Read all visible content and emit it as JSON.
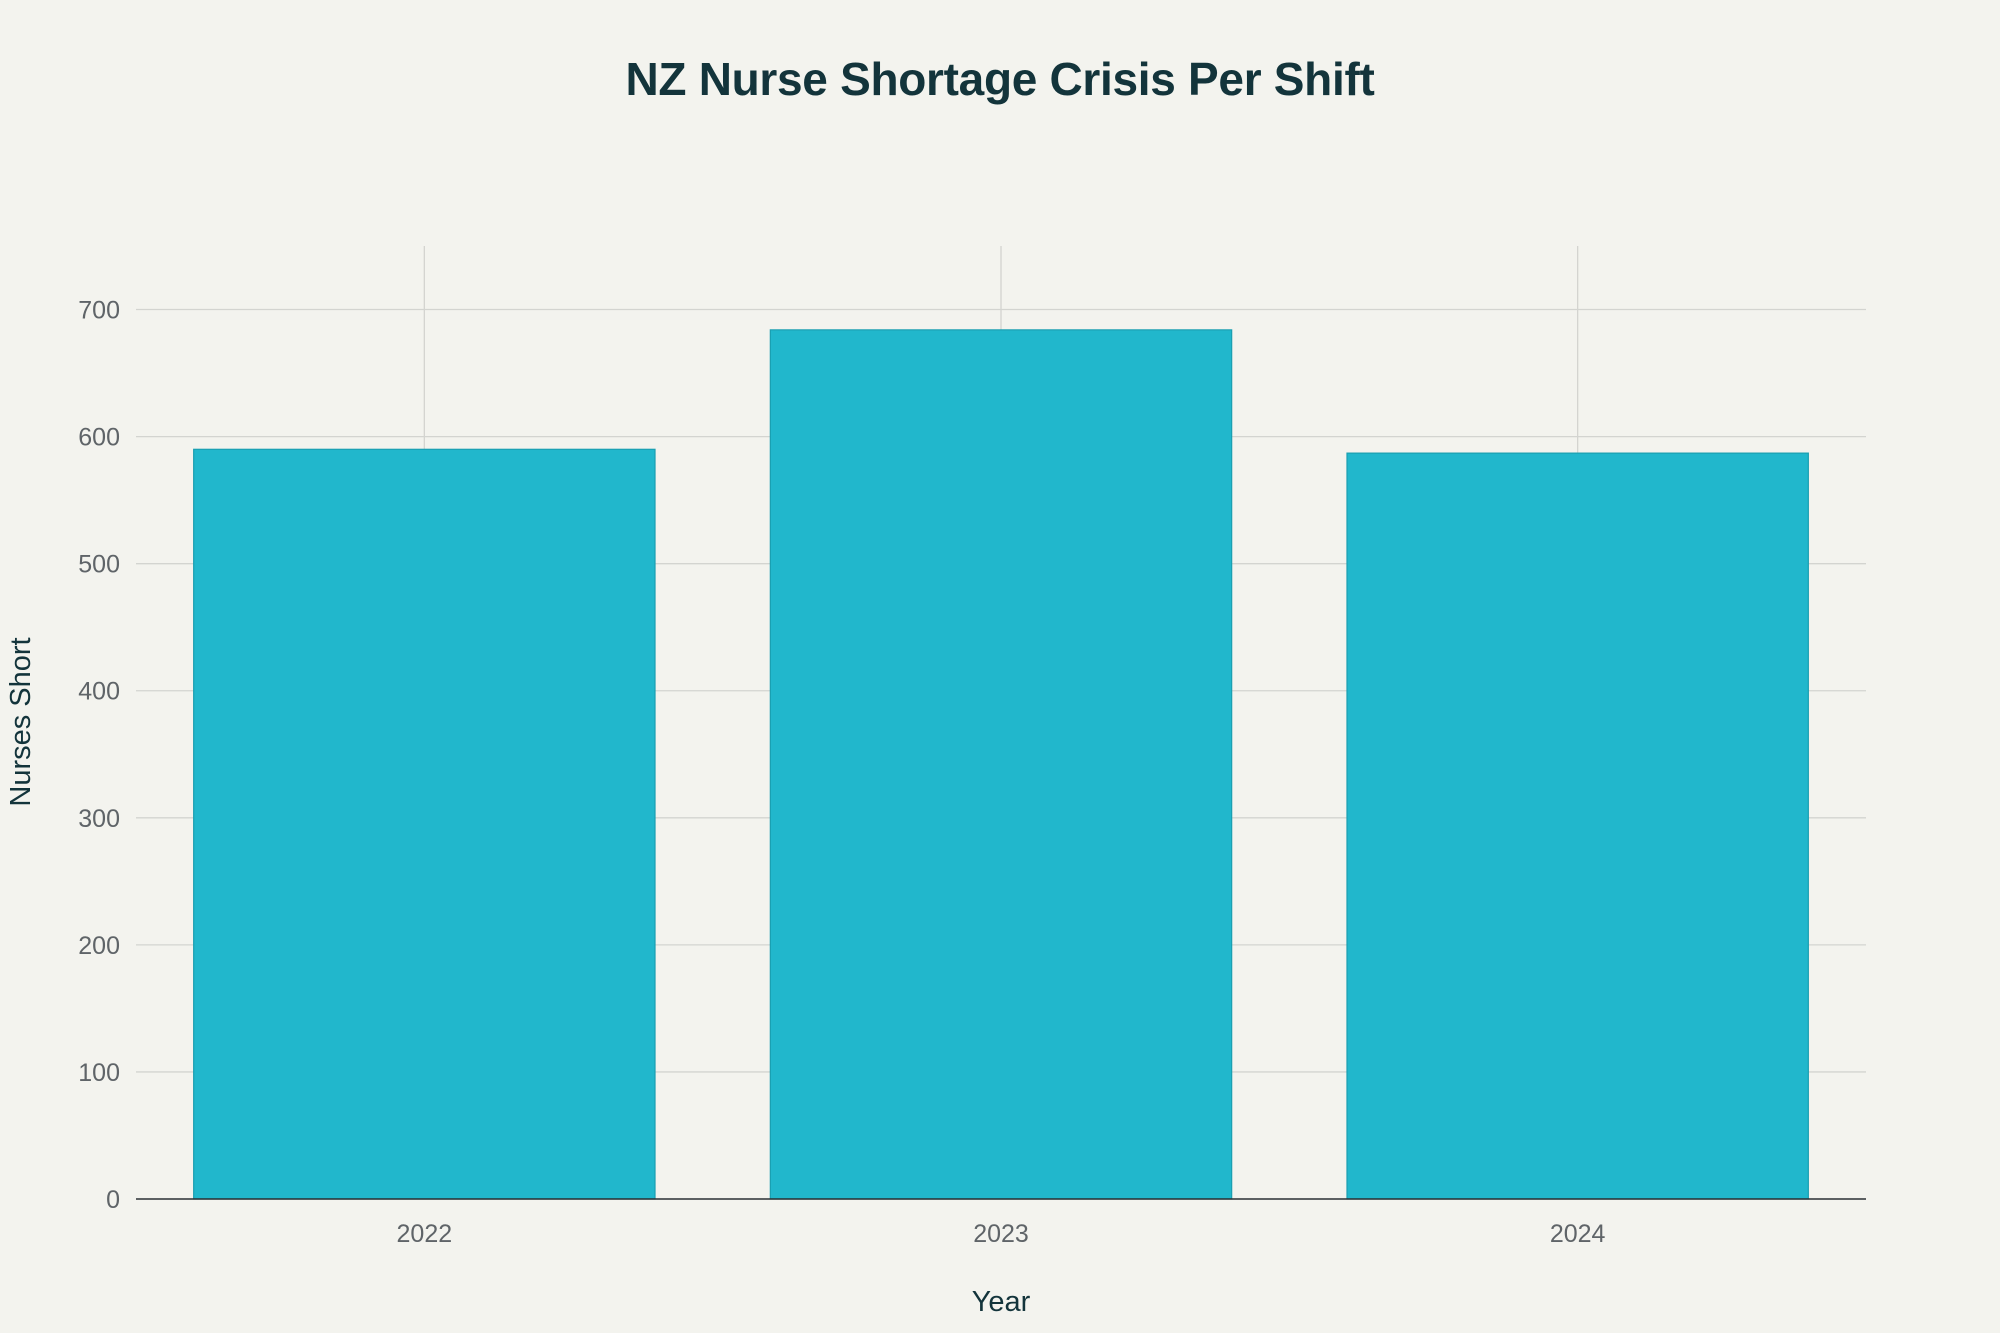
{
  "chart_data": {
    "type": "bar",
    "title": "NZ Nurse Shortage Crisis Per Shift",
    "xlabel": "Year",
    "ylabel": "Nurses Short",
    "categories": [
      "2022",
      "2023",
      "2024"
    ],
    "values": [
      590,
      684,
      587
    ],
    "ylim": [
      0,
      750
    ],
    "yticks": [
      0,
      100,
      200,
      300,
      400,
      500,
      600,
      700
    ],
    "grid": true,
    "legend": "none",
    "colors": {
      "bar": "#21b7cc",
      "bar_edge": "#1a9fb1",
      "grid": "#d3d4d0",
      "axis_line": "#2a2f33",
      "background": "#f3f3ee",
      "title": "#13343b"
    }
  }
}
